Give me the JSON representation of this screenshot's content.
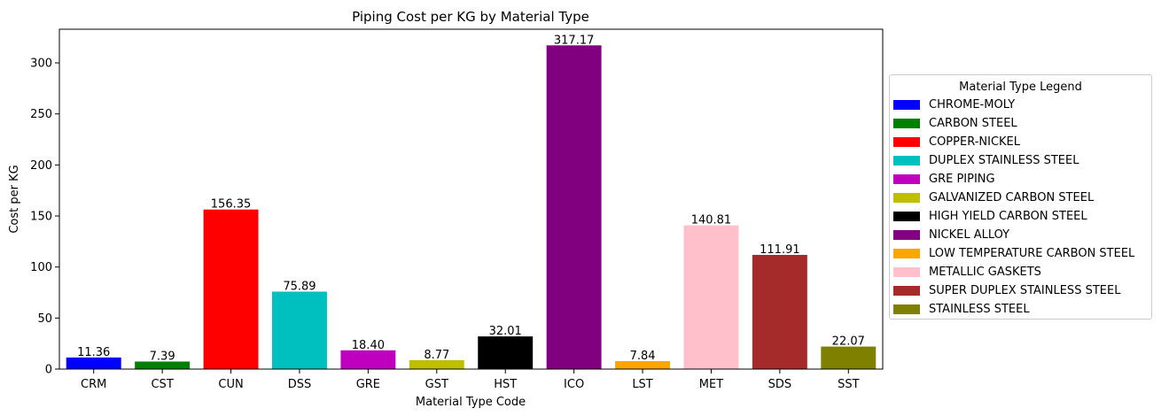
{
  "chart_data": {
    "type": "bar",
    "title": "Piping Cost per KG by Material Type",
    "xlabel": "Material Type Code",
    "ylabel": "Cost per KG",
    "ylim": [
      0,
      333
    ],
    "yticks": [
      0,
      50,
      100,
      150,
      200,
      250,
      300
    ],
    "categories": [
      "CRM",
      "CST",
      "CUN",
      "DSS",
      "GRE",
      "GST",
      "HST",
      "ICO",
      "LST",
      "MET",
      "SDS",
      "SST"
    ],
    "values": [
      11.36,
      7.39,
      156.35,
      75.89,
      18.4,
      8.77,
      32.01,
      317.17,
      7.84,
      140.81,
      111.91,
      22.07
    ],
    "value_labels": [
      "11.36",
      "7.39",
      "156.35",
      "75.89",
      "18.40",
      "8.77",
      "32.01",
      "317.17",
      "7.84",
      "140.81",
      "111.91",
      "22.07"
    ],
    "colors": [
      "#0000ff",
      "#008000",
      "#ff0000",
      "#00bfbf",
      "#bf00bf",
      "#bfbf00",
      "#000000",
      "#800080",
      "#ffa500",
      "#ffc0cb",
      "#a52a2a",
      "#808000"
    ],
    "grid": false,
    "legend": {
      "title": "Material Type Legend",
      "placement": "right",
      "entries": [
        "CHROME-MOLY",
        "CARBON STEEL",
        "COPPER-NICKEL",
        "DUPLEX STAINLESS STEEL",
        "GRE PIPING",
        "GALVANIZED CARBON STEEL",
        "HIGH YIELD CARBON STEEL",
        "NICKEL ALLOY",
        "LOW TEMPERATURE CARBON STEEL",
        "METALLIC GASKETS",
        "SUPER DUPLEX STAINLESS STEEL",
        "STAINLESS STEEL"
      ]
    }
  }
}
